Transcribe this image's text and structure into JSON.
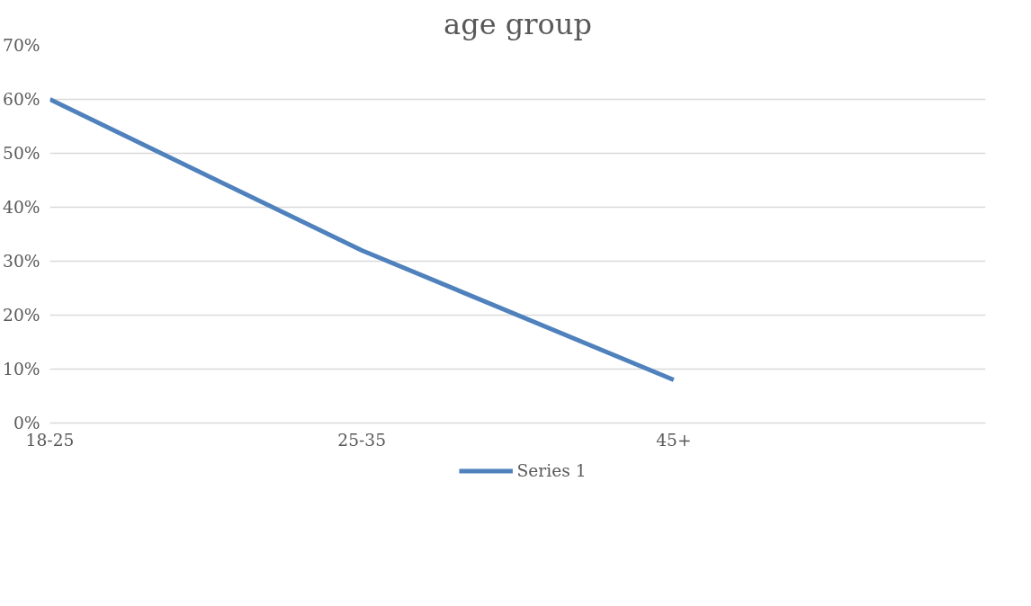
{
  "chart_data": {
    "type": "line",
    "title": "age group",
    "categories": [
      "18-25",
      "25-35",
      "45+",
      null
    ],
    "series": [
      {
        "name": "Series 1",
        "color": "#4f81bd",
        "values": [
          60,
          32,
          8,
          null
        ]
      }
    ],
    "ylim": [
      0,
      70
    ],
    "yticks": [
      {
        "value": 0,
        "label": "0%"
      },
      {
        "value": 10,
        "label": "10%"
      },
      {
        "value": 20,
        "label": "20%"
      },
      {
        "value": 30,
        "label": "30%"
      },
      {
        "value": 40,
        "label": "40%"
      },
      {
        "value": 50,
        "label": "50%"
      },
      {
        "value": 60,
        "label": "60%"
      },
      {
        "value": 70,
        "label": "70%"
      }
    ],
    "grid": "y",
    "legend": "bottom",
    "marker": "none",
    "line_style": "solid"
  }
}
